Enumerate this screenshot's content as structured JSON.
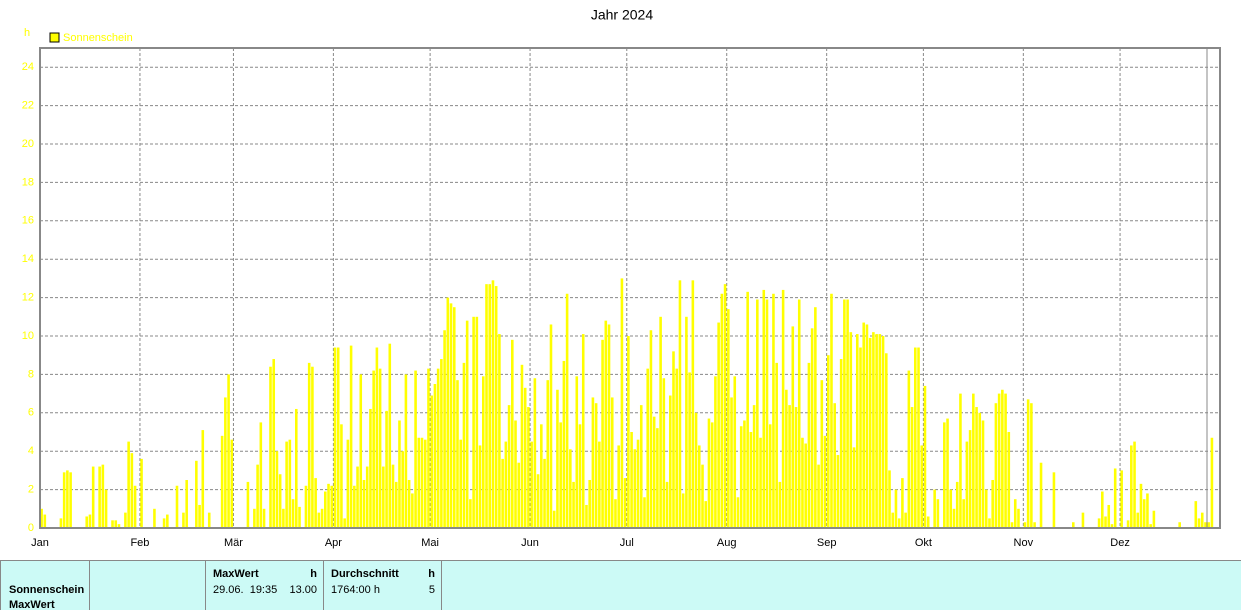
{
  "chart_data": {
    "type": "bar",
    "title": "Jahr 2024",
    "y_unit": "h",
    "grid": true,
    "color": "#ffff00",
    "text_color": "#ffff00",
    "ylim": [
      0,
      25
    ],
    "yticks": [
      0,
      2,
      4,
      6,
      8,
      10,
      12,
      14,
      16,
      18,
      20,
      22,
      24
    ],
    "categories": [
      "Jan",
      null,
      null,
      null,
      null,
      null,
      null,
      null,
      null,
      null,
      null,
      null,
      null,
      null,
      null,
      null,
      null,
      null,
      null,
      null,
      null,
      null,
      null,
      null,
      null,
      null,
      null,
      null,
      null,
      null,
      null,
      "Feb",
      null,
      null,
      null,
      null,
      null,
      null,
      null,
      null,
      null,
      null,
      null,
      null,
      null,
      null,
      null,
      null,
      null,
      null,
      null,
      null,
      null,
      null,
      null,
      null,
      null,
      null,
      null,
      null,
      "Mär",
      null,
      null,
      null,
      null,
      null,
      null,
      null,
      null,
      null,
      null,
      null,
      null,
      null,
      null,
      null,
      null,
      null,
      null,
      null,
      null,
      null,
      null,
      null,
      null,
      null,
      null,
      null,
      null,
      null,
      null,
      "Apr",
      null,
      null,
      null,
      null,
      null,
      null,
      null,
      null,
      null,
      null,
      null,
      null,
      null,
      null,
      null,
      null,
      null,
      null,
      null,
      null,
      null,
      null,
      null,
      null,
      null,
      null,
      null,
      null,
      null,
      "Mai",
      null,
      null,
      null,
      null,
      null,
      null,
      null,
      null,
      null,
      null,
      null,
      null,
      null,
      null,
      null,
      null,
      null,
      null,
      null,
      null,
      null,
      null,
      null,
      null,
      null,
      null,
      null,
      null,
      null,
      null,
      "Jun",
      null,
      null,
      null,
      null,
      null,
      null,
      null,
      null,
      null,
      null,
      null,
      null,
      null,
      null,
      null,
      null,
      null,
      null,
      null,
      null,
      null,
      null,
      null,
      null,
      null,
      null,
      null,
      null,
      null,
      "Jul",
      null,
      null,
      null,
      null,
      null,
      null,
      null,
      null,
      null,
      null,
      null,
      null,
      null,
      null,
      null,
      null,
      null,
      null,
      null,
      null,
      null,
      null,
      null,
      null,
      null,
      null,
      null,
      null,
      null,
      null,
      "Aug",
      null,
      null,
      null,
      null,
      null,
      null,
      null,
      null,
      null,
      null,
      null,
      null,
      null,
      null,
      null,
      null,
      null,
      null,
      null,
      null,
      null,
      null,
      null,
      null,
      null,
      null,
      null,
      null,
      null,
      null,
      "Sep",
      null,
      null,
      null,
      null,
      null,
      null,
      null,
      null,
      null,
      null,
      null,
      null,
      null,
      null,
      null,
      null,
      null,
      null,
      null,
      null,
      null,
      null,
      null,
      null,
      null,
      null,
      null,
      null,
      null,
      "Okt",
      null,
      null,
      null,
      null,
      null,
      null,
      null,
      null,
      null,
      null,
      null,
      null,
      null,
      null,
      null,
      null,
      null,
      null,
      null,
      null,
      null,
      null,
      null,
      null,
      null,
      null,
      null,
      null,
      null,
      null,
      "Nov",
      null,
      null,
      null,
      null,
      null,
      null,
      null,
      null,
      null,
      null,
      null,
      null,
      null,
      null,
      null,
      null,
      null,
      null,
      null,
      null,
      null,
      null,
      null,
      null,
      null,
      null,
      null,
      null,
      null,
      "Dez",
      null,
      null,
      null,
      null,
      null,
      null,
      null,
      null,
      null,
      null,
      null,
      null,
      null,
      null,
      null,
      null,
      null,
      null,
      null,
      null,
      null,
      null,
      null,
      null,
      null,
      null,
      null,
      null,
      null,
      null
    ],
    "series": [
      {
        "name": "Sonnenschein",
        "color": "#ffff00",
        "values": [
          1.0,
          0.7,
          0,
          0,
          0,
          0,
          0.5,
          2.9,
          3.0,
          2.9,
          0,
          0,
          0,
          0,
          0.6,
          0.7,
          3.2,
          0,
          3.2,
          3.3,
          2.0,
          0,
          0.4,
          0.4,
          0.2,
          0,
          0.8,
          4.5,
          3.9,
          2.2,
          0,
          3.6,
          0,
          0,
          0,
          1.0,
          0,
          0,
          0.5,
          0.7,
          0,
          0,
          2.2,
          0,
          0.8,
          2.5,
          0,
          0,
          3.5,
          1.2,
          5.1,
          0,
          0.8,
          0,
          0,
          0,
          4.8,
          6.8,
          8.0,
          4.6,
          0,
          0,
          0,
          0,
          2.4,
          0,
          1.0,
          3.3,
          5.5,
          1.0,
          0,
          8.4,
          8.8,
          4.0,
          2.8,
          1.0,
          4.5,
          4.6,
          1.5,
          6.2,
          1.1,
          0,
          2.2,
          8.6,
          8.4,
          2.6,
          0.8,
          1.0,
          1.9,
          2.3,
          2.2,
          9.4,
          9.4,
          5.4,
          0.5,
          4.6,
          9.5,
          2.2,
          3.2,
          8.0,
          2.5,
          3.2,
          6.2,
          8.2,
          9.4,
          8.3,
          3.2,
          6.1,
          9.6,
          3.3,
          2.4,
          5.6,
          4.0,
          8.0,
          2.5,
          1.8,
          8.2,
          4.7,
          4.7,
          4.6,
          8.3,
          6.9,
          7.5,
          8.3,
          8.8,
          10.3,
          12.0,
          11.7,
          11.5,
          7.7,
          4.6,
          8.6,
          10.8,
          1.5,
          11.0,
          11.0,
          4.3,
          7.9,
          12.7,
          12.7,
          12.9,
          12.6,
          10.1,
          3.6,
          4.5,
          6.4,
          9.8,
          5.6,
          3.4,
          8.5,
          7.3,
          6.3,
          4.5,
          7.8,
          2.8,
          5.4,
          3.6,
          7.7,
          10.6,
          0.9,
          7.2,
          5.5,
          8.7,
          12.2,
          4.1,
          2.4,
          7.9,
          5.4,
          10.1,
          1.2,
          2.5,
          6.8,
          6.5,
          4.5,
          9.8,
          10.8,
          10.6,
          6.8,
          1.5,
          4.3,
          13.0,
          2.6,
          10.0,
          5.0,
          4.1,
          4.6,
          6.4,
          1.6,
          8.3,
          10.3,
          5.8,
          5.2,
          11.0,
          7.8,
          2.4,
          6.9,
          9.2,
          8.3,
          12.9,
          1.8,
          11.0,
          8.1,
          12.9,
          6.0,
          4.3,
          3.3,
          1.4,
          5.7,
          5.5,
          7.9,
          10.7,
          12.2,
          12.7,
          11.4,
          6.8,
          7.9,
          1.6,
          5.3,
          5.6,
          12.3,
          5.0,
          6.4,
          11.9,
          4.7,
          12.4,
          11.9,
          5.4,
          12.2,
          8.6,
          2.4,
          12.4,
          7.2,
          6.4,
          10.5,
          6.3,
          11.9,
          4.7,
          4.4,
          8.6,
          10.4,
          11.5,
          3.3,
          7.7,
          4.8,
          9.0,
          12.2,
          6.5,
          3.8,
          8.8,
          11.9,
          11.9,
          10.2,
          4.2,
          10.1,
          9.4,
          10.7,
          10.6,
          9.9,
          10.2,
          10.1,
          10.1,
          10.0,
          9.1,
          3.0,
          0.8,
          2.0,
          0.5,
          2.6,
          0.8,
          8.2,
          6.3,
          9.4,
          9.4,
          4.3,
          7.4,
          0.6,
          0,
          2.0,
          1.5,
          0,
          5.5,
          5.7,
          2.0,
          1.0,
          2.4,
          7.0,
          1.5,
          4.5,
          5.1,
          7.0,
          6.3,
          6.0,
          5.6,
          2.0,
          0.5,
          2.5,
          6.5,
          7.0,
          7.2,
          7.0,
          5.0,
          0.3,
          1.5,
          1.0,
          0,
          0.3,
          6.7,
          6.5,
          0.3,
          0,
          3.4,
          0,
          0,
          0,
          2.9,
          0,
          0,
          0,
          0,
          0,
          0.3,
          0,
          0,
          0.8,
          0,
          0,
          0,
          0,
          0.5,
          1.9,
          0.6,
          1.2,
          0.2,
          3.1,
          0,
          3.0,
          0,
          0.4,
          4.3,
          4.5,
          0.8,
          2.3,
          1.5,
          1.8,
          0.2,
          0.9,
          0,
          0,
          0,
          0,
          0,
          0,
          0,
          0.3,
          0,
          0,
          0,
          0,
          1.4,
          0.5,
          0.8,
          0.3,
          0.3,
          4.7,
          0,
          0
        ]
      }
    ]
  },
  "table": {
    "row_labels": [
      "Sonnenschein",
      "MaxWert"
    ],
    "columns": [
      {
        "header": "MaxWert",
        "unit": "h",
        "cells": [
          "29.06.  19:35",
          "13.00"
        ]
      },
      {
        "header": "Durchschnitt",
        "unit": "h",
        "cells": [
          "1764:00 h",
          "5"
        ]
      }
    ]
  }
}
